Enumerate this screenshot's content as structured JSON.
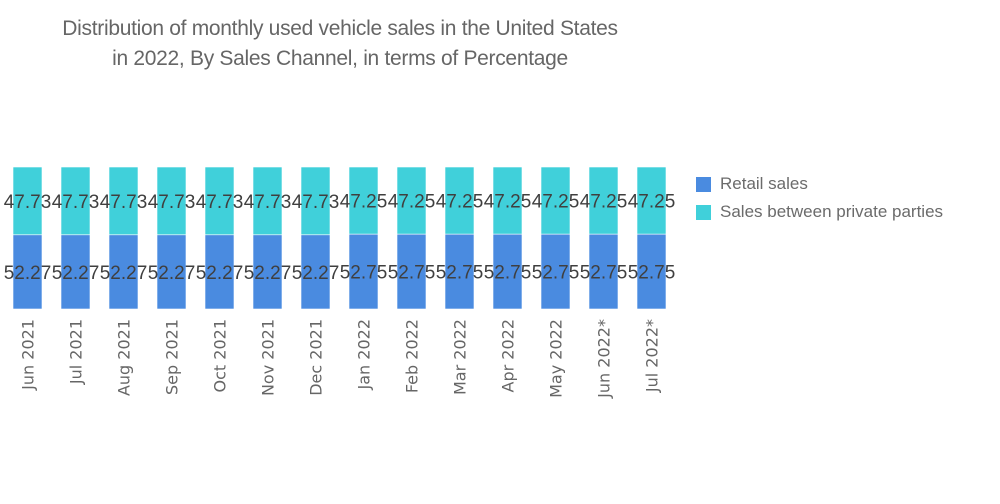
{
  "chart_data": {
    "type": "bar",
    "stacked": true,
    "title": "Distribution of monthly used vehicle sales in the United States in 2022, By Sales Channel, in terms of Percentage",
    "title_lines": [
      "Distribution of monthly used vehicle sales in the United States",
      "in 2022, By Sales Channel, in terms of Percentage"
    ],
    "xlabel": "",
    "ylabel": "",
    "ylim": [
      0,
      100
    ],
    "grid": false,
    "legend_position": "right",
    "categories": [
      "Jun 2021",
      "Jul 2021",
      "Aug 2021",
      "Sep 2021",
      "Oct 2021",
      "Nov 2021",
      "Dec 2021",
      "Jan 2022",
      "Feb 2022",
      "Mar 2022",
      "Apr 2022",
      "May 2022",
      "Jun 2022*",
      "Jul 2022*"
    ],
    "series": [
      {
        "name": "Retail sales",
        "color": "#4a8be0",
        "values": [
          52.27,
          52.27,
          52.27,
          52.27,
          52.27,
          52.27,
          52.27,
          52.75,
          52.75,
          52.75,
          52.75,
          52.75,
          52.75,
          52.75
        ]
      },
      {
        "name": "Sales between private parties",
        "color": "#40d0da",
        "values": [
          47.73,
          47.73,
          47.73,
          47.73,
          47.73,
          47.73,
          47.73,
          47.25,
          47.25,
          47.25,
          47.25,
          47.25,
          47.25,
          47.25
        ]
      }
    ]
  }
}
